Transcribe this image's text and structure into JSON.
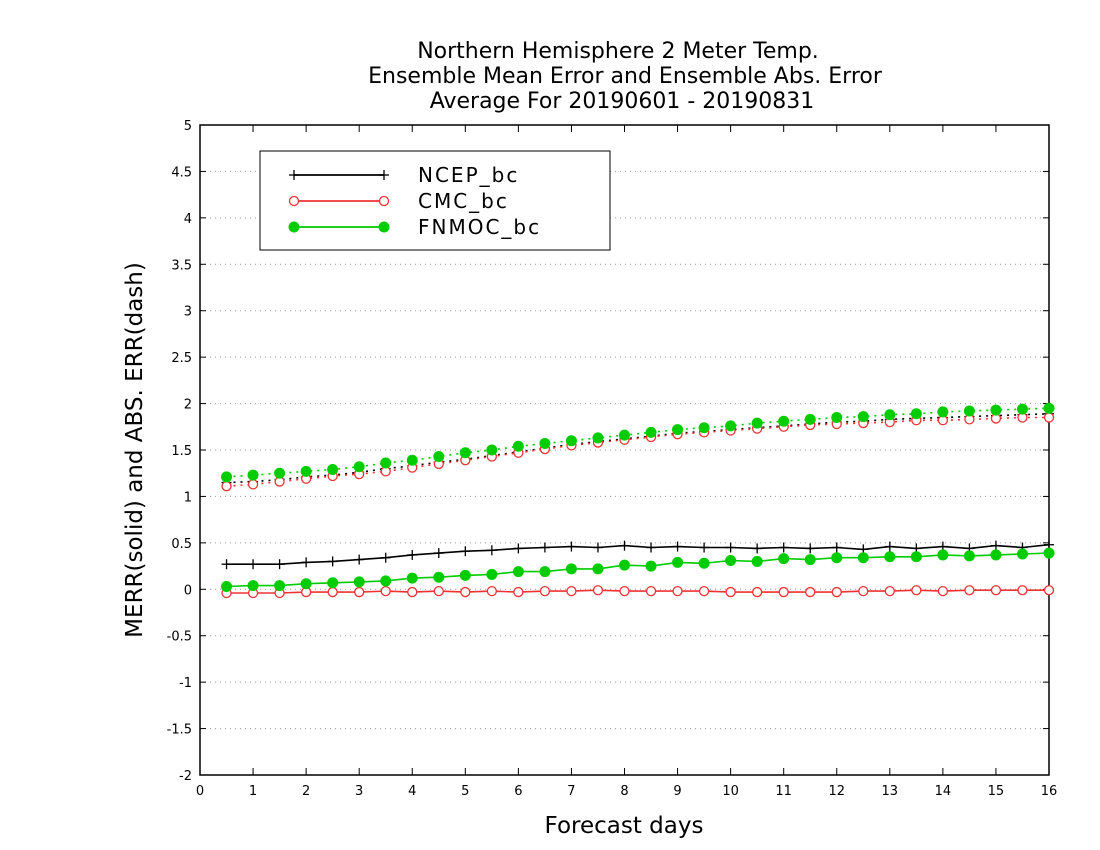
{
  "chart_data": {
    "type": "line",
    "title_lines": [
      "Northern Hemisphere 2 Meter Temp.",
      "Ensemble Mean Error and Ensemble Abs. Error",
      "Average For 20190601 - 20190831"
    ],
    "xlabel": "Forecast days",
    "ylabel": "MERR(solid) and ABS. ERR(dash)",
    "xlim": [
      0,
      16
    ],
    "ylim": [
      -2,
      5
    ],
    "x_ticks": [
      "0",
      "1",
      "2",
      "3",
      "4",
      "5",
      "6",
      "7",
      "8",
      "9",
      "10",
      "11",
      "12",
      "13",
      "14",
      "15",
      "16"
    ],
    "y_ticks": [
      "-2",
      "-1.5",
      "-1",
      "-0.5",
      "0",
      "0.5",
      "1",
      "1.5",
      "2",
      "2.5",
      "3",
      "3.5",
      "4",
      "4.5",
      "5"
    ],
    "grid": "horizontal dotted",
    "legend_position": "top-left",
    "x": [
      0.5,
      1,
      1.5,
      2,
      2.5,
      3,
      3.5,
      4,
      4.5,
      5,
      5.5,
      6,
      6.5,
      7,
      7.5,
      8,
      8.5,
      9,
      9.5,
      10,
      10.5,
      11,
      11.5,
      12,
      12.5,
      13,
      13.5,
      14,
      14.5,
      15,
      15.5,
      16
    ],
    "series": [
      {
        "name": "NCEP_bc",
        "color": "#000000",
        "marker": "plus",
        "mean_error": [
          0.27,
          0.27,
          0.27,
          0.29,
          0.3,
          0.32,
          0.34,
          0.37,
          0.39,
          0.41,
          0.42,
          0.44,
          0.45,
          0.46,
          0.45,
          0.47,
          0.45,
          0.46,
          0.45,
          0.45,
          0.44,
          0.45,
          0.44,
          0.45,
          0.43,
          0.46,
          0.44,
          0.46,
          0.44,
          0.47,
          0.45,
          0.48
        ],
        "abs_error": [
          1.15,
          1.16,
          1.18,
          1.21,
          1.23,
          1.26,
          1.3,
          1.33,
          1.37,
          1.4,
          1.44,
          1.48,
          1.52,
          1.56,
          1.59,
          1.62,
          1.65,
          1.68,
          1.7,
          1.72,
          1.74,
          1.76,
          1.78,
          1.8,
          1.81,
          1.83,
          1.84,
          1.85,
          1.86,
          1.87,
          1.88,
          1.89
        ]
      },
      {
        "name": "CMC_bc",
        "color": "#ee3333",
        "marker": "open-circle",
        "mean_error": [
          -0.04,
          -0.04,
          -0.04,
          -0.03,
          -0.03,
          -0.03,
          -0.02,
          -0.03,
          -0.02,
          -0.03,
          -0.02,
          -0.03,
          -0.02,
          -0.02,
          -0.01,
          -0.02,
          -0.02,
          -0.02,
          -0.02,
          -0.03,
          -0.03,
          -0.03,
          -0.03,
          -0.03,
          -0.02,
          -0.02,
          -0.01,
          -0.02,
          -0.01,
          -0.01,
          -0.01,
          -0.01
        ],
        "abs_error": [
          1.11,
          1.13,
          1.16,
          1.19,
          1.22,
          1.24,
          1.27,
          1.31,
          1.35,
          1.39,
          1.43,
          1.47,
          1.51,
          1.55,
          1.58,
          1.61,
          1.64,
          1.67,
          1.69,
          1.71,
          1.73,
          1.75,
          1.77,
          1.78,
          1.79,
          1.8,
          1.82,
          1.82,
          1.83,
          1.84,
          1.85,
          1.85
        ]
      },
      {
        "name": "FNMOC_bc",
        "color": "#00cc00",
        "marker": "filled-circle",
        "mean_error": [
          0.03,
          0.04,
          0.04,
          0.06,
          0.07,
          0.08,
          0.09,
          0.12,
          0.13,
          0.15,
          0.16,
          0.19,
          0.19,
          0.22,
          0.22,
          0.26,
          0.25,
          0.29,
          0.28,
          0.31,
          0.3,
          0.33,
          0.32,
          0.34,
          0.34,
          0.35,
          0.35,
          0.37,
          0.36,
          0.37,
          0.38,
          0.39
        ],
        "abs_error": [
          1.21,
          1.23,
          1.25,
          1.27,
          1.29,
          1.32,
          1.36,
          1.39,
          1.43,
          1.47,
          1.5,
          1.54,
          1.57,
          1.6,
          1.63,
          1.66,
          1.69,
          1.72,
          1.74,
          1.76,
          1.79,
          1.81,
          1.83,
          1.85,
          1.86,
          1.88,
          1.89,
          1.91,
          1.92,
          1.93,
          1.94,
          1.95
        ]
      }
    ]
  }
}
